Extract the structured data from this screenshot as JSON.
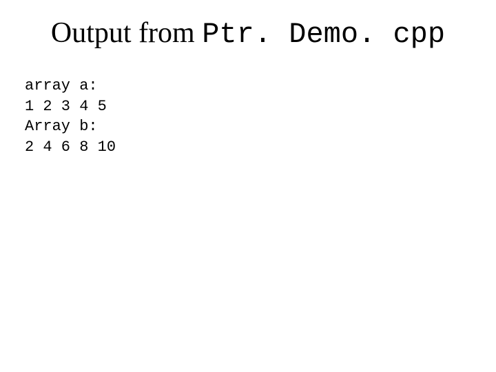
{
  "title": {
    "prefix": "Output from ",
    "filename": "Ptr. Demo. cpp"
  },
  "output": {
    "lines": [
      "array a:",
      "1 2 3 4 5",
      "Array b:",
      "2 4 6 8 10"
    ]
  },
  "colors": {
    "background": "#ffffff",
    "text": "#000000"
  },
  "typography": {
    "title_fontsize": 42,
    "title_font": "Times New Roman",
    "mono_font": "Courier New",
    "output_fontsize": 22
  }
}
